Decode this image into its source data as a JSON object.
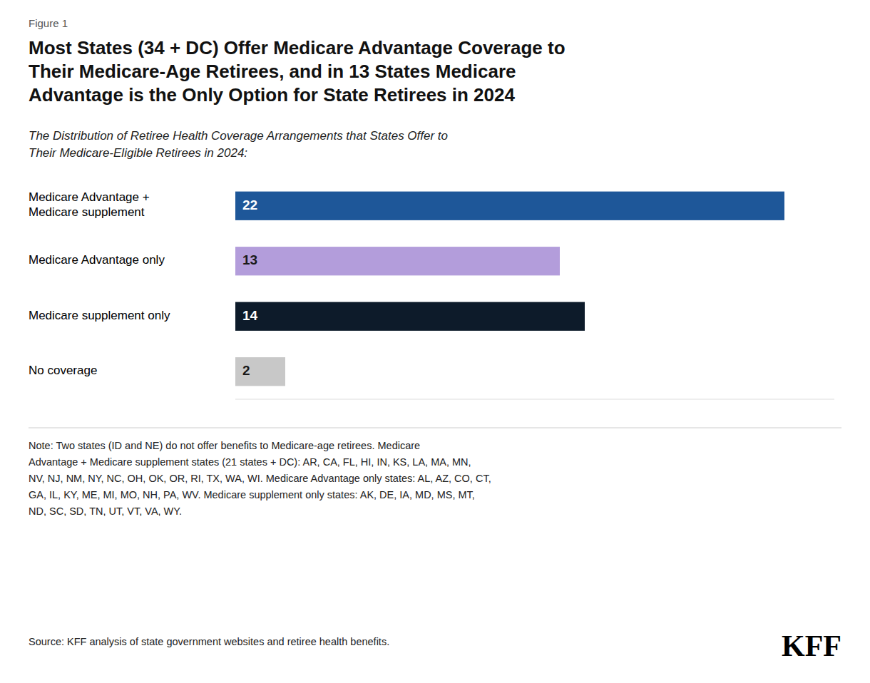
{
  "chart_data": {
    "type": "bar",
    "orientation": "horizontal",
    "title": "Most States (34 + DC) Offer Medicare Advantage Coverage to\nTheir Medicare-Age Retirees, and in 13 States Medicare\nAdvantage is the Only Option for State Retirees in 2024",
    "subtitle": "The Distribution of Retiree Health Coverage Arrangements that States Offer to\nTheir Medicare-Eligible Retirees in 2024:",
    "annotations": [
      "Figure 1",
      "Note: Two states (ID and NE) do not offer benefits to Medicare-age retirees. Medicare\nAdvantage + Medicare supplement states (21 states + DC): AR, CA, FL, HI, IN, KS, LA, MA, MN,\nNV, NJ, NM, NY, NC, OH, OK, OR, RI, TX, WA, WI. Medicare Advantage only states: AL, AZ, CO, CT,\nGA, IL, KY, ME, MI, MO, NH, PA, WV. Medicare supplement only states: AK, DE, IA, MD, MS, MT,\nND, SC, SD, TN, UT, VT, VA, WY.",
      "Source: KFF analysis of state government websites and retiree health benefits.",
      "KFF"
    ],
    "categories": [
      "Medicare Advantage +\nMedicare supplement",
      "Medicare Advantage only",
      "Medicare supplement only",
      "No coverage"
    ],
    "values": [
      22,
      13,
      14,
      2
    ],
    "colors": [
      "#1e5799",
      "#b39ddb",
      "#0d1b2a",
      "#c8c8c8"
    ],
    "xlim": [
      0,
      24
    ],
    "data_labels": true,
    "tick_labels": false,
    "grid": false
  }
}
